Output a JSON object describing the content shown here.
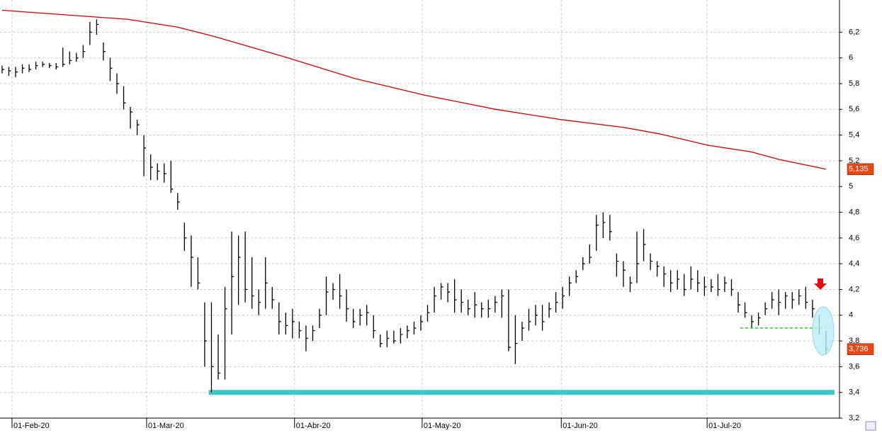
{
  "chart_data": {
    "type": "ohlc",
    "x": [
      0,
      1,
      2,
      3,
      4,
      5,
      6,
      7,
      8,
      9,
      10,
      11,
      12,
      13,
      14,
      15,
      16,
      17,
      18,
      19,
      20,
      21,
      22,
      23,
      24,
      25,
      26,
      27,
      28,
      29,
      30,
      31,
      32,
      33,
      34,
      35,
      36,
      37,
      38,
      39,
      40,
      41,
      42,
      43,
      44,
      45,
      46,
      47,
      48,
      49,
      50,
      51,
      52,
      53,
      54,
      55,
      56,
      57,
      58,
      59,
      60,
      61,
      62,
      63,
      64,
      65,
      66,
      67,
      68,
      69,
      70,
      71,
      72,
      73,
      74,
      75,
      76,
      77,
      78,
      79,
      80,
      81,
      82,
      83,
      84,
      85,
      86,
      87,
      88,
      89,
      90,
      91,
      92,
      93,
      94,
      95,
      96,
      97,
      98,
      99,
      100,
      101,
      102,
      103,
      104,
      105,
      106,
      107,
      108,
      109,
      110,
      111,
      112,
      113,
      114,
      115,
      116,
      117,
      118,
      119,
      120,
      121,
      122
    ],
    "high": [
      5.94,
      5.93,
      5.93,
      5.95,
      5.95,
      5.97,
      5.97,
      5.96,
      5.96,
      6.08,
      6.05,
      6.04,
      6.1,
      6.28,
      6.3,
      6.12,
      6.0,
      5.88,
      5.78,
      5.62,
      5.52,
      5.4,
      5.25,
      5.18,
      5.18,
      5.2,
      4.95,
      4.72,
      4.62,
      4.45,
      4.1,
      4.1,
      3.85,
      4.22,
      4.65,
      4.62,
      4.65,
      4.45,
      4.2,
      4.45,
      4.22,
      4.1,
      4.02,
      4.05,
      3.95,
      3.92,
      3.92,
      4.05,
      4.3,
      4.25,
      4.32,
      4.2,
      4.05,
      4.05,
      4.08,
      4.0,
      3.85,
      3.88,
      3.88,
      3.9,
      3.92,
      3.95,
      4.0,
      4.08,
      4.22,
      4.25,
      4.25,
      4.28,
      4.2,
      4.12,
      4.18,
      4.1,
      4.12,
      4.15,
      4.2,
      4.2,
      4.0,
      3.95,
      4.05,
      4.08,
      4.08,
      4.1,
      4.18,
      4.22,
      4.3,
      4.35,
      4.45,
      4.55,
      4.78,
      4.8,
      4.78,
      4.48,
      4.42,
      4.3,
      4.65,
      4.67,
      4.48,
      4.42,
      4.38,
      4.35,
      4.35,
      4.32,
      4.38,
      4.35,
      4.3,
      4.28,
      4.32,
      4.3,
      4.28,
      4.18,
      4.1,
      4.0,
      4.02,
      4.1,
      4.18,
      4.2,
      4.18,
      4.18,
      4.2,
      4.22,
      4.12,
      4.0,
      3.88
    ],
    "low": [
      5.88,
      5.86,
      5.85,
      5.88,
      5.89,
      5.91,
      5.93,
      5.92,
      5.91,
      5.93,
      5.95,
      5.97,
      6.0,
      6.1,
      6.18,
      5.98,
      5.82,
      5.72,
      5.6,
      5.45,
      5.4,
      5.08,
      5.05,
      5.05,
      5.03,
      4.95,
      4.82,
      4.5,
      4.22,
      4.2,
      3.6,
      3.4,
      3.5,
      3.5,
      3.85,
      4.08,
      4.1,
      4.05,
      4.0,
      4.05,
      4.05,
      3.85,
      3.85,
      3.82,
      3.82,
      3.72,
      3.8,
      3.9,
      4.0,
      4.12,
      4.05,
      3.95,
      3.9,
      3.92,
      3.92,
      3.82,
      3.75,
      3.75,
      3.78,
      3.78,
      3.82,
      3.85,
      3.88,
      3.95,
      4.02,
      4.12,
      4.1,
      4.02,
      4.02,
      4.0,
      3.98,
      3.98,
      3.98,
      4.02,
      3.98,
      3.72,
      3.62,
      3.8,
      3.88,
      3.92,
      3.88,
      3.98,
      4.02,
      4.05,
      4.15,
      4.25,
      4.35,
      4.4,
      4.5,
      4.6,
      4.58,
      4.3,
      4.22,
      4.18,
      4.25,
      4.42,
      4.35,
      4.3,
      4.22,
      4.18,
      4.2,
      4.15,
      4.2,
      4.18,
      4.15,
      4.18,
      4.15,
      4.18,
      4.15,
      4.02,
      3.98,
      3.9,
      3.92,
      4.0,
      4.05,
      4.0,
      4.05,
      4.05,
      4.08,
      4.05,
      3.98,
      3.85,
      3.7
    ],
    "close": [
      5.91,
      5.9,
      5.89,
      5.92,
      5.91,
      5.94,
      5.95,
      5.94,
      5.93,
      5.95,
      5.98,
      6.0,
      6.05,
      6.2,
      6.26,
      6.05,
      5.92,
      5.8,
      5.65,
      5.58,
      5.48,
      5.3,
      5.15,
      5.12,
      5.1,
      4.98,
      4.88,
      4.6,
      4.45,
      4.25,
      3.8,
      3.6,
      3.55,
      4.05,
      4.3,
      4.45,
      4.2,
      4.15,
      4.1,
      4.25,
      4.12,
      3.95,
      3.92,
      3.95,
      3.88,
      3.82,
      3.88,
      4.0,
      4.18,
      4.2,
      4.15,
      4.05,
      3.95,
      4.0,
      4.02,
      3.88,
      3.78,
      3.82,
      3.8,
      3.85,
      3.88,
      3.9,
      3.95,
      4.02,
      4.15,
      4.22,
      4.18,
      4.12,
      4.1,
      4.05,
      4.08,
      4.05,
      4.05,
      4.1,
      4.15,
      3.75,
      3.78,
      3.9,
      3.95,
      4.0,
      3.95,
      4.05,
      4.1,
      4.15,
      4.25,
      4.3,
      4.4,
      4.45,
      4.7,
      4.72,
      4.65,
      4.42,
      4.35,
      4.25,
      4.4,
      4.55,
      4.42,
      4.38,
      4.32,
      4.25,
      4.28,
      4.2,
      4.28,
      4.25,
      4.22,
      4.22,
      4.2,
      4.25,
      4.2,
      4.08,
      4.02,
      3.95,
      3.98,
      4.05,
      4.12,
      4.1,
      4.15,
      4.12,
      4.15,
      4.1,
      4.05,
      3.9,
      3.736
    ],
    "close_label": "3,736",
    "bar_color": "#000000",
    "moving_average": {
      "color": "#cc0000",
      "x": [
        0,
        13.3,
        18.6,
        25.9,
        31.2,
        41.7,
        52.2,
        62.6,
        73.1,
        82.8,
        92,
        97.3,
        104.6,
        110.9,
        115.1,
        122
      ],
      "values": [
        6.37,
        6.32,
        6.3,
        6.24,
        6.17,
        6.01,
        5.84,
        5.71,
        5.6,
        5.52,
        5.46,
        5.41,
        5.32,
        5.27,
        5.21,
        5.135
      ],
      "last_label": "5,135"
    },
    "support": {
      "value": 3.4,
      "x": [
        30.6,
        123.4
      ],
      "color": "#3cc8c8"
    },
    "trigger": {
      "value": 3.9,
      "x": [
        109.3,
        122
      ],
      "color": "#22cc22"
    },
    "label_box_color": "#ee4411",
    "xlim": [
      -0.31,
      124.0
    ],
    "xticks": [
      {
        "value": 1.47,
        "label": "01-Feb-20"
      },
      {
        "value": 21.4,
        "label": "01-Mar-20"
      },
      {
        "value": 43.3,
        "label": "01-Abr-20"
      },
      {
        "value": 62.2,
        "label": "01-May-20"
      },
      {
        "value": 82.8,
        "label": "01-Jun-20"
      },
      {
        "value": 104.4,
        "label": "01-Jul-20"
      }
    ],
    "ylim": [
      3.2,
      6.45
    ],
    "yticks": [
      {
        "value": 3.2,
        "label": "3,2"
      },
      {
        "value": 3.4,
        "label": "3,4"
      },
      {
        "value": 3.6,
        "label": "3,6"
      },
      {
        "value": 3.8,
        "label": "3,8"
      },
      4,
      {
        "value": 4.2,
        "label": "4,2"
      },
      {
        "value": 4.4,
        "label": "4,4"
      },
      {
        "value": 4.6,
        "label": "4,6"
      },
      {
        "value": 4.8,
        "label": "4,8"
      },
      5,
      {
        "value": 5.2,
        "label": "5,2"
      },
      {
        "value": 5.4,
        "label": "5,4"
      },
      {
        "value": 5.6,
        "label": "5,6"
      },
      {
        "value": 5.8,
        "label": "5,8"
      },
      6,
      {
        "value": 6.2,
        "label": "6,2"
      }
    ],
    "grid": true
  }
}
